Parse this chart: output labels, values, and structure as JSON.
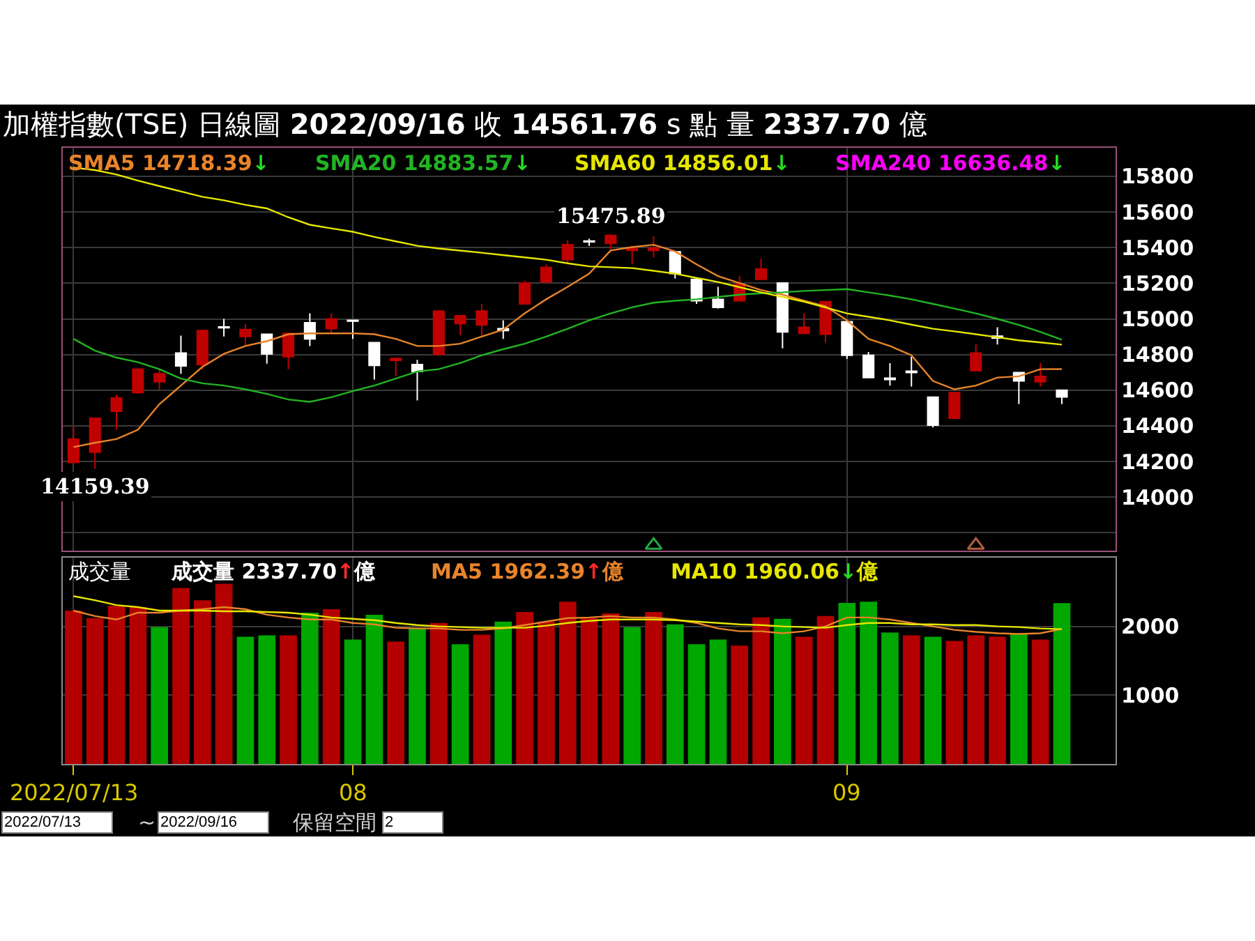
{
  "chart_data": [
    {
      "type": "candlestick",
      "title": "加權指數(TSE) 日線圖 2022/09/16 收 14561.76 s 點 量 2337.70 億",
      "categories": [
        null,
        null,
        null,
        null,
        null,
        null,
        null,
        null,
        null,
        null,
        null,
        null,
        null,
        null,
        null,
        null,
        null,
        null,
        null,
        null,
        null,
        null,
        null,
        null,
        null,
        null,
        null,
        null,
        null,
        null,
        null,
        null,
        null,
        null,
        null,
        null,
        null,
        null,
        null,
        null,
        null,
        null,
        null,
        null,
        null,
        null,
        null
      ],
      "ohlc": [
        [
          14195,
          14399,
          14190,
          14326
        ],
        [
          14252,
          14448,
          14159.39,
          14443
        ],
        [
          14482,
          14574,
          14378,
          14556
        ],
        [
          14587,
          14725,
          14580,
          14718
        ],
        [
          14647,
          14718,
          14600,
          14692
        ],
        [
          14809,
          14906,
          14692,
          14736
        ],
        [
          14744,
          14940,
          14718,
          14935
        ],
        [
          14955,
          15000,
          14901,
          14950
        ],
        [
          14901,
          14971,
          14848,
          14940
        ],
        [
          14914,
          14918,
          14749,
          14804
        ],
        [
          14788,
          14922,
          14718,
          14919
        ],
        [
          14979,
          15031,
          14848,
          14888
        ],
        [
          14945,
          15031,
          14919,
          15000
        ],
        [
          14992,
          14994,
          14888,
          14987
        ],
        [
          14867,
          14870,
          14660,
          14739
        ],
        [
          14767,
          14780,
          14678,
          14778
        ],
        [
          14744,
          14770,
          14543,
          14705
        ],
        [
          14801,
          15047,
          14798,
          15044
        ],
        [
          14974,
          15020,
          14909,
          15018
        ],
        [
          14966,
          15084,
          14901,
          15044
        ],
        [
          14945,
          14992,
          14888,
          14935
        ],
        [
          15084,
          15214,
          15080,
          15201
        ],
        [
          15207,
          15306,
          15200,
          15288
        ],
        [
          15332,
          15442,
          15311,
          15416
        ],
        [
          15437,
          15450,
          15410,
          15432
        ],
        [
          15423,
          15475.89,
          15390,
          15468
        ],
        [
          15384,
          15410,
          15306,
          15395
        ],
        [
          15384,
          15463,
          15345,
          15397
        ],
        [
          15376,
          15378,
          15227,
          15254
        ],
        [
          15222,
          15225,
          15084,
          15102
        ],
        [
          15110,
          15180,
          15058,
          15065
        ],
        [
          15102,
          15240,
          15097,
          15196
        ],
        [
          15222,
          15337,
          15220,
          15280
        ],
        [
          15201,
          15205,
          14835,
          14927
        ],
        [
          14919,
          15031,
          14914,
          14953
        ],
        [
          14914,
          15100,
          14867,
          15097
        ],
        [
          14984,
          14988,
          14775,
          14796
        ],
        [
          14796,
          14814,
          14668,
          14671
        ],
        [
          14668,
          14752,
          14626,
          14660
        ],
        [
          14707,
          14788,
          14621,
          14699
        ],
        [
          14561,
          14565,
          14391,
          14404
        ],
        [
          14443,
          14590,
          14440,
          14587
        ],
        [
          14710,
          14856,
          14707,
          14809
        ],
        [
          14903,
          14953,
          14856,
          14893
        ],
        [
          14699,
          14702,
          14522,
          14652
        ],
        [
          14647,
          14752,
          14621,
          14678
        ],
        [
          14600,
          14603,
          14522,
          14561.76
        ]
      ],
      "colors": [
        "#c00000",
        "#c00000",
        "#c00000",
        "#c00000",
        "#c00000",
        "#ffffff",
        "#c00000",
        "#ffffff",
        "#c00000",
        "#ffffff",
        "#c00000",
        "#ffffff",
        "#c00000",
        "#ffffff",
        "#ffffff",
        "#c00000",
        "#ffffff",
        "#c00000",
        "#c00000",
        "#c00000",
        "#ffffff",
        "#c00000",
        "#c00000",
        "#c00000",
        "#ffffff",
        "#c00000",
        "#c00000",
        "#c00000",
        "#ffffff",
        "#ffffff",
        "#ffffff",
        "#c00000",
        "#c00000",
        "#ffffff",
        "#c00000",
        "#c00000",
        "#ffffff",
        "#ffffff",
        "#ffffff",
        "#ffffff",
        "#ffffff",
        "#c00000",
        "#c00000",
        "#ffffff",
        "#ffffff",
        "#c00000",
        "#ffffff"
      ],
      "series": [
        {
          "name": "SMA5 14718.39↓",
          "type": "line",
          "color": "#e8842a",
          "values": [
            14281,
            14305,
            14326,
            14378,
            14522,
            14626,
            14731,
            14804,
            14848,
            14875,
            14914,
            14919,
            14919,
            14919,
            14914,
            14888,
            14848,
            14848,
            14861,
            14901,
            14940,
            15031,
            15110,
            15180,
            15254,
            15384,
            15403,
            15416,
            15379,
            15306,
            15240,
            15201,
            15162,
            15136,
            15102,
            15071,
            14992,
            14888,
            14848,
            14796,
            14652,
            14605,
            14626,
            14671,
            14678,
            14718,
            14718.39
          ]
        },
        {
          "name": "SMA20 14883.57↓",
          "type": "line",
          "color": "#22b422",
          "values": [
            14888,
            14822,
            14783,
            14757,
            14718,
            14665,
            14639,
            14626,
            14605,
            14579,
            14548,
            14535,
            14561,
            14595,
            14626,
            14665,
            14705,
            14718,
            14752,
            14796,
            14830,
            14861,
            14901,
            14945,
            14992,
            15031,
            15065,
            15091,
            15102,
            15110,
            15123,
            15136,
            15144,
            15149,
            15157,
            15162,
            15167,
            15149,
            15131,
            15110,
            15084,
            15058,
            15031,
            15000,
            14966,
            14927,
            14883.57
          ]
        },
        {
          "name": "SMA60 14856.01↓",
          "type": "line",
          "color": "#e6e600",
          "values": [
            15849,
            15835,
            15810,
            15776,
            15745,
            15715,
            15685,
            15665,
            15640,
            15620,
            15570,
            15528,
            15508,
            15489,
            15460,
            15435,
            15410,
            15395,
            15383,
            15371,
            15358,
            15345,
            15332,
            15312,
            15295,
            15290,
            15285,
            15270,
            15254,
            15230,
            15207,
            15178,
            15149,
            15123,
            15097,
            15064,
            15031,
            15012,
            14992,
            14968,
            14945,
            14930,
            14914,
            14897,
            14880,
            14868,
            14856.01
          ]
        },
        {
          "name": "SMA240 16636.48↓",
          "type": "line",
          "color": "#ff00ff",
          "values": [
            null,
            null,
            null,
            null,
            null,
            null,
            null,
            null,
            null,
            null,
            null,
            null,
            null,
            null,
            null,
            null,
            null,
            null,
            null,
            null,
            null,
            null,
            null,
            null,
            null,
            null,
            null,
            null,
            null,
            null,
            null,
            null,
            null,
            null,
            null,
            null,
            null,
            null,
            null,
            null,
            null,
            null,
            null,
            null,
            null,
            null,
            null
          ]
        },
        {
          "type": "scatter",
          "marker": "triangle",
          "values": [
            null,
            null,
            null,
            null,
            null,
            null,
            null,
            null,
            null,
            null,
            null,
            null,
            null,
            null,
            null,
            null,
            null,
            null,
            null,
            null,
            null,
            null,
            null,
            null,
            null,
            null,
            null,
            13730,
            null,
            null,
            null,
            null,
            null,
            null,
            null,
            null,
            null,
            null,
            null,
            null,
            null,
            null,
            13730,
            null,
            null,
            null,
            null
          ],
          "colors": [
            null,
            null,
            null,
            null,
            null,
            null,
            null,
            null,
            null,
            null,
            null,
            null,
            null,
            null,
            null,
            null,
            null,
            null,
            null,
            null,
            null,
            null,
            null,
            null,
            null,
            null,
            null,
            "#22aa44",
            null,
            null,
            null,
            null,
            null,
            null,
            null,
            null,
            null,
            null,
            null,
            null,
            null,
            null,
            "#b06040",
            null,
            null,
            null,
            null
          ]
        }
      ],
      "ylim": [
        13700,
        15960
      ],
      "yticks": [
        {
          "value": 13800,
          "label": null
        },
        14000,
        14200,
        14400,
        14600,
        14800,
        15000,
        15200,
        15400,
        15600,
        15800
      ],
      "annotations": [
        {
          "text": "15475.89",
          "y": 15475.89
        },
        {
          "text": "14159.39",
          "y": 14159.39
        }
      ],
      "grid": true,
      "legend": "top left",
      "tick_labels": "y"
    },
    {
      "type": "bar",
      "title": "成交量",
      "categories": [
        "2022/07/13",
        null,
        null,
        null,
        null,
        null,
        null,
        null,
        null,
        null,
        null,
        null,
        null,
        "08",
        null,
        null,
        null,
        null,
        null,
        null,
        null,
        null,
        null,
        null,
        null,
        null,
        null,
        null,
        null,
        null,
        null,
        null,
        null,
        null,
        null,
        null,
        "09",
        null,
        null,
        null,
        null,
        null,
        null,
        null,
        null,
        null,
        null
      ],
      "series": [
        {
          "name": "成交量 2337.70↑億",
          "colors": [
            "#b40000",
            "#b40000",
            "#b40000",
            "#b40000",
            "#00a800",
            "#b40000",
            "#b40000",
            "#b40000",
            "#00a800",
            "#00a800",
            "#b40000",
            "#00a800",
            "#b40000",
            "#00a800",
            "#00a800",
            "#b40000",
            "#00a800",
            "#b40000",
            "#00a800",
            "#b40000",
            "#00a800",
            "#b40000",
            "#b40000",
            "#b40000",
            "#b40000",
            "#b40000",
            "#00a800",
            "#b40000",
            "#00a800",
            "#00a800",
            "#00a800",
            "#b40000",
            "#b40000",
            "#00a800",
            "#b40000",
            "#b40000",
            "#00a800",
            "#00a800",
            "#00a800",
            "#b40000",
            "#00a800",
            "#b40000",
            "#b40000",
            "#b40000",
            "#00a800",
            "#b40000",
            "#00a800"
          ],
          "values": [
            2230,
            2120,
            2300,
            2280,
            1990,
            2560,
            2380,
            2620,
            1850,
            1870,
            1870,
            2200,
            2250,
            1810,
            2170,
            1780,
            1970,
            2050,
            1740,
            1880,
            2070,
            2210,
            2070,
            2360,
            2120,
            2190,
            1990,
            2210,
            2030,
            1740,
            1810,
            1720,
            2130,
            2110,
            1850,
            2150,
            2340,
            2360,
            1910,
            1870,
            1850,
            1790,
            1870,
            1850,
            1890,
            1810,
            2337.7
          ]
        },
        {
          "name": "MA5 1962.39↑億",
          "type": "line",
          "color": "#e8842a",
          "values": [
            2230,
            2150,
            2100,
            2200,
            2200,
            2230,
            2250,
            2280,
            2250,
            2170,
            2130,
            2100,
            2100,
            2050,
            2030,
            1980,
            1970,
            1970,
            1950,
            1950,
            1970,
            2020,
            2070,
            2120,
            2130,
            2150,
            2130,
            2130,
            2100,
            2050,
            1970,
            1930,
            1930,
            1900,
            1930,
            2000,
            2130,
            2130,
            2100,
            2050,
            2000,
            1950,
            1920,
            1900,
            1890,
            1900,
            1962.39
          ]
        },
        {
          "name": "MA10 1960.06↓億",
          "type": "line",
          "color": "#e6e600",
          "values": [
            2440,
            2380,
            2310,
            2280,
            2230,
            2230,
            2230,
            2220,
            2220,
            2210,
            2200,
            2170,
            2130,
            2110,
            2090,
            2050,
            2020,
            2000,
            1990,
            1980,
            1980,
            1980,
            2010,
            2050,
            2080,
            2100,
            2100,
            2100,
            2090,
            2070,
            2050,
            2030,
            2020,
            2000,
            1990,
            1980,
            2020,
            2050,
            2050,
            2030,
            2030,
            2020,
            2020,
            2000,
            1990,
            1970,
            1960.06
          ]
        }
      ],
      "ylim": [
        0,
        3000
      ],
      "yticks": [
        1000,
        2000
      ],
      "annotations": [
        "2022/07/13",
        "~",
        "2022/09/16",
        "保留空間",
        "2"
      ],
      "grid": true,
      "legend": "top left"
    }
  ]
}
